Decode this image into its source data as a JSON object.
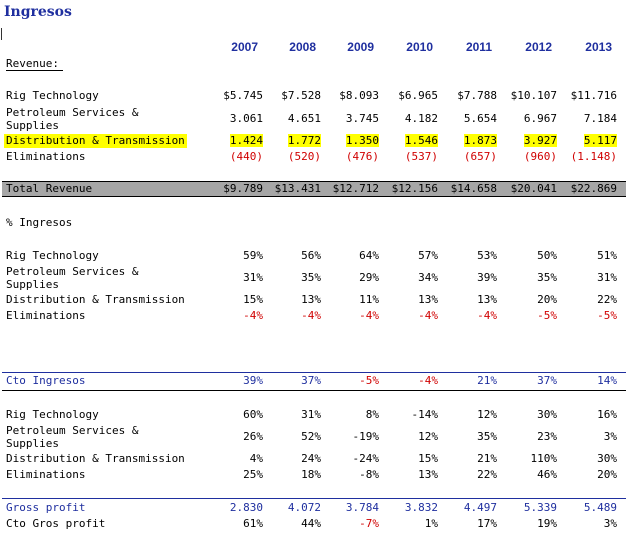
{
  "title": "Ingresos",
  "years": [
    "2007",
    "2008",
    "2009",
    "2010",
    "2011",
    "2012",
    "2013"
  ],
  "revenue_label": "Revenue:",
  "revenue": [
    {
      "label": "Rig Technology",
      "values": [
        "$5.745",
        "$7.528",
        "$8.093",
        "$6.965",
        "$7.788",
        "$10.107",
        "$11.716"
      ]
    },
    {
      "label": "Petroleum Services & Supplies",
      "values": [
        "3.061",
        "4.651",
        "3.745",
        "4.182",
        "5.654",
        "6.967",
        "7.184"
      ]
    },
    {
      "label": "Distribution & Transmission",
      "values": [
        "1.424",
        "1.772",
        "1.350",
        "1.546",
        "1.873",
        "3.927",
        "5.117"
      ]
    },
    {
      "label": "Eliminations",
      "values": [
        "(440)",
        "(520)",
        "(476)",
        "(537)",
        "(657)",
        "(960)",
        "(1.148)"
      ]
    }
  ],
  "total_revenue": {
    "label": "Total Revenue",
    "values": [
      "$9.789",
      "$13.431",
      "$12.712",
      "$12.156",
      "$14.658",
      "$20.041",
      "$22.869"
    ]
  },
  "pct_title": "% Ingresos",
  "pct": [
    {
      "label": "Rig Technology",
      "values": [
        "59%",
        "56%",
        "64%",
        "57%",
        "53%",
        "50%",
        "51%"
      ]
    },
    {
      "label": "Petroleum Services & Supplies",
      "values": [
        "31%",
        "35%",
        "29%",
        "34%",
        "39%",
        "35%",
        "31%"
      ]
    },
    {
      "label": "Distribution & Transmission",
      "values": [
        "15%",
        "13%",
        "11%",
        "13%",
        "13%",
        "20%",
        "22%"
      ]
    },
    {
      "label": "Eliminations",
      "values": [
        "-4%",
        "-4%",
        "-4%",
        "-4%",
        "-4%",
        "-5%",
        "-5%"
      ]
    }
  ],
  "cto_ingresos": {
    "label": "Cto Ingresos",
    "values": [
      "39%",
      "37%",
      "-5%",
      "-4%",
      "21%",
      "37%",
      "14%"
    ]
  },
  "growth": [
    {
      "label": "Rig Technology",
      "values": [
        "60%",
        "31%",
        "8%",
        "-14%",
        "12%",
        "30%",
        "16%"
      ]
    },
    {
      "label": "Petroleum Services & Supplies",
      "values": [
        "26%",
        "52%",
        "-19%",
        "12%",
        "35%",
        "23%",
        "3%"
      ]
    },
    {
      "label": "Distribution & Transmission",
      "values": [
        "4%",
        "24%",
        "-24%",
        "15%",
        "21%",
        "110%",
        "30%"
      ]
    },
    {
      "label": "Eliminations",
      "values": [
        "25%",
        "18%",
        "-8%",
        "13%",
        "22%",
        "46%",
        "20%"
      ]
    }
  ],
  "gross_profit": {
    "label": "Gross profit",
    "values": [
      "2.830",
      "4.072",
      "3.784",
      "3.832",
      "4.497",
      "5.339",
      "5.489"
    ]
  },
  "cto_gross_profit": {
    "label": "Cto Gros profit",
    "values": [
      "61%",
      "44%",
      "-7%",
      "1%",
      "17%",
      "19%",
      "3%"
    ]
  },
  "colors": {
    "title_blue": "#1f2f9f",
    "negative_red": "#d00000",
    "highlight": "#ffff00",
    "total_bar": "#a6a6a6"
  }
}
